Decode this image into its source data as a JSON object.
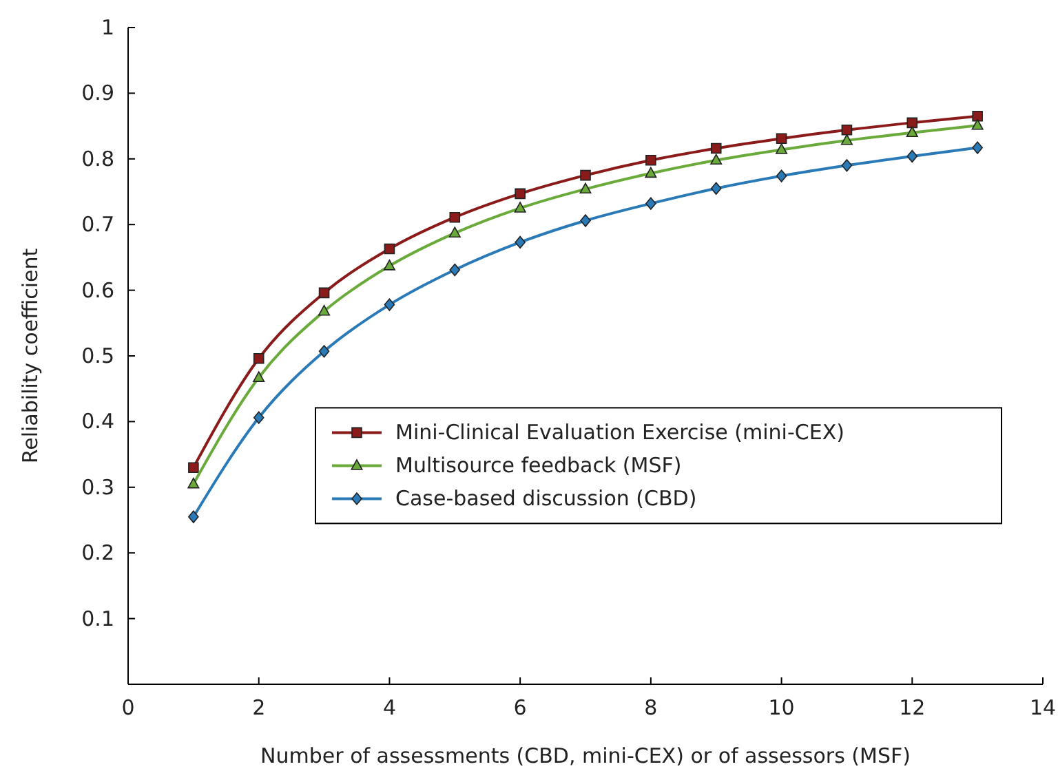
{
  "chart_data": {
    "type": "line",
    "xlabel": "Number of assessments (CBD, mini-CEX) or of assessors (MSF)",
    "ylabel": "Reliability coefficient",
    "x": [
      1,
      2,
      3,
      4,
      5,
      6,
      7,
      8,
      9,
      10,
      11,
      12,
      13
    ],
    "series": [
      {
        "name": "Mini-Clinical Evaluation Exercise (mini-CEX)",
        "color": "#8b1a1a",
        "marker": "square",
        "values": [
          0.33,
          0.496,
          0.596,
          0.663,
          0.711,
          0.747,
          0.775,
          0.798,
          0.816,
          0.831,
          0.844,
          0.855,
          0.865
        ]
      },
      {
        "name": "Multisource feedback (MSF)",
        "color": "#6aaa3a",
        "marker": "triangle",
        "values": [
          0.305,
          0.467,
          0.568,
          0.637,
          0.687,
          0.725,
          0.754,
          0.778,
          0.798,
          0.814,
          0.828,
          0.84,
          0.851
        ]
      },
      {
        "name": "Case-based discussion (CBD)",
        "color": "#2a7ab8",
        "marker": "diamond",
        "values": [
          0.255,
          0.406,
          0.507,
          0.578,
          0.631,
          0.673,
          0.706,
          0.732,
          0.755,
          0.774,
          0.79,
          0.804,
          0.817
        ]
      }
    ],
    "xlim": [
      0,
      14
    ],
    "xticks": [
      0,
      2,
      4,
      6,
      8,
      10,
      12,
      14
    ],
    "ylim": [
      0,
      1
    ],
    "yticks": [
      {
        "value": 0,
        "label": null
      },
      0.1,
      0.2,
      0.3,
      0.4,
      0.5,
      0.6,
      0.7,
      0.8,
      0.9,
      1
    ],
    "legend": "bottom right",
    "line_style": "solid",
    "grid": false
  }
}
